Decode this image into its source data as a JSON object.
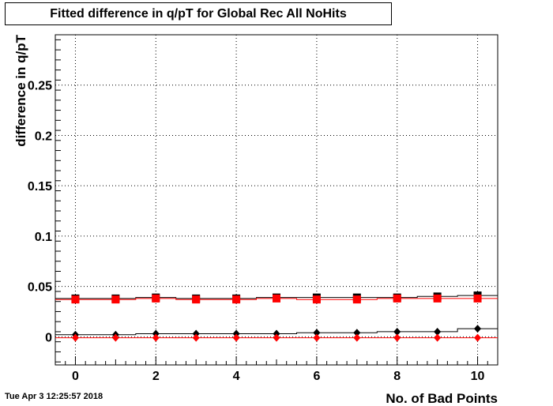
{
  "chart_data": {
    "type": "scatter",
    "title": "Fitted difference in q/pT  for Global Rec All NoHits",
    "xlabel": "No. of Bad Points",
    "ylabel": "difference in q/pT",
    "xlim": [
      -0.5,
      10.5
    ],
    "ylim": [
      -0.028,
      0.3
    ],
    "x_ticks": [
      0,
      2,
      4,
      6,
      8,
      10
    ],
    "y_ticks": [
      0,
      0.05,
      0.1,
      0.15,
      0.2,
      0.25
    ],
    "y_tick_labels": [
      "0",
      "0.05",
      "0.1",
      "0.15",
      "0.2",
      "0.25"
    ],
    "grid": true,
    "series": [
      {
        "marker": "square",
        "color": "#000000",
        "x": [
          0,
          1,
          2,
          3,
          4,
          5,
          6,
          7,
          8,
          9,
          10
        ],
        "values": [
          0.038,
          0.038,
          0.039,
          0.038,
          0.038,
          0.039,
          0.039,
          0.039,
          0.039,
          0.04,
          0.041
        ]
      },
      {
        "marker": "square",
        "color": "#ff0000",
        "x": [
          0,
          1,
          2,
          3,
          4,
          5,
          6,
          7,
          8,
          9,
          10
        ],
        "values": [
          0.037,
          0.037,
          0.038,
          0.037,
          0.037,
          0.038,
          0.037,
          0.037,
          0.038,
          0.038,
          0.038
        ]
      },
      {
        "marker": "diamond",
        "color": "#000000",
        "x": [
          0,
          1,
          2,
          3,
          4,
          5,
          6,
          7,
          8,
          9,
          10
        ],
        "values": [
          0.002,
          0.002,
          0.003,
          0.003,
          0.003,
          0.003,
          0.004,
          0.004,
          0.005,
          0.005,
          0.008
        ]
      },
      {
        "marker": "diamond",
        "color": "#ff0000",
        "x": [
          0,
          1,
          2,
          3,
          4,
          5,
          6,
          7,
          8,
          9,
          10
        ],
        "values": [
          -0.001,
          -0.001,
          -0.001,
          -0.001,
          -0.001,
          -0.001,
          -0.001,
          -0.001,
          -0.001,
          -0.001,
          -0.001
        ]
      }
    ]
  },
  "footer": {
    "timestamp": "Tue Apr  3 12:25:57 2018"
  }
}
